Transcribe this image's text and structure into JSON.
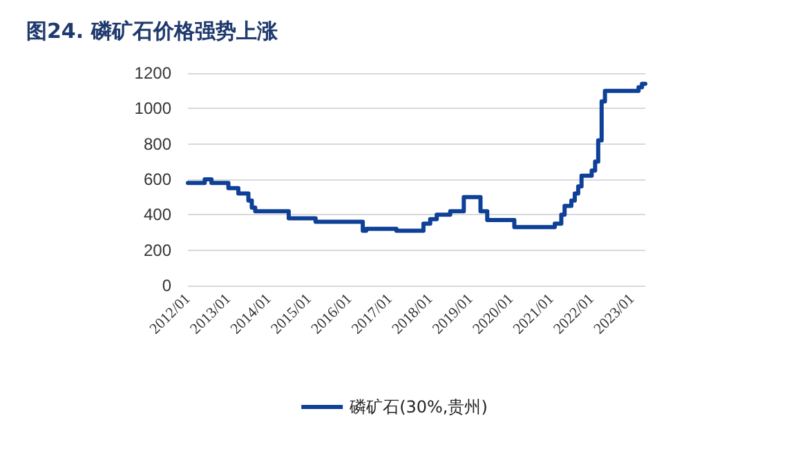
{
  "chart_data": {
    "type": "step",
    "title": "图24. 磷矿石价格强势上涨",
    "x": [
      "2012-01",
      "2012-06",
      "2012-08",
      "2013-01",
      "2013-04",
      "2013-07",
      "2013-08",
      "2013-09",
      "2014-07",
      "2015-03",
      "2016-05",
      "2016-06",
      "2017-03",
      "2017-11",
      "2018-01",
      "2018-03",
      "2018-07",
      "2018-11",
      "2019-04",
      "2019-06",
      "2020-02",
      "2021-02",
      "2021-04",
      "2021-05",
      "2021-07",
      "2021-08",
      "2021-09",
      "2021-10",
      "2022-01",
      "2022-02",
      "2022-03",
      "2022-04",
      "2022-05",
      "2022-06",
      "2023-03",
      "2023-04",
      "2023-05"
    ],
    "series": [
      {
        "name": "磷矿石(30%,贵州)",
        "color": "#0e4097",
        "values": [
          580,
          600,
          580,
          550,
          520,
          480,
          440,
          420,
          380,
          360,
          310,
          320,
          310,
          350,
          375,
          400,
          420,
          500,
          420,
          370,
          330,
          350,
          400,
          450,
          480,
          520,
          560,
          620,
          650,
          700,
          820,
          1040,
          1100,
          1100,
          1120,
          1140,
          1140
        ]
      }
    ],
    "xlim": [
      "2012-01",
      "2023-05"
    ],
    "xticks": [
      {
        "value": "2012-01",
        "label": "2012/01"
      },
      {
        "value": "2013-01",
        "label": "2013/01"
      },
      {
        "value": "2014-01",
        "label": "2014/01"
      },
      {
        "value": "2015-01",
        "label": "2015/01"
      },
      {
        "value": "2016-01",
        "label": "2016/01"
      },
      {
        "value": "2017-01",
        "label": "2017/01"
      },
      {
        "value": "2018-01",
        "label": "2018/01"
      },
      {
        "value": "2019-01",
        "label": "2019/01"
      },
      {
        "value": "2020-01",
        "label": "2020/01"
      },
      {
        "value": "2021-01",
        "label": "2021/01"
      },
      {
        "value": "2022-01",
        "label": "2022/01"
      },
      {
        "value": "2023-01",
        "label": "2023/01"
      }
    ],
    "ylim": [
      0,
      1200
    ],
    "yticks": [
      0,
      200,
      400,
      600,
      800,
      1000,
      1200
    ],
    "grid": "y",
    "legend": "bottom",
    "marker": "none",
    "line_style": "solid"
  }
}
